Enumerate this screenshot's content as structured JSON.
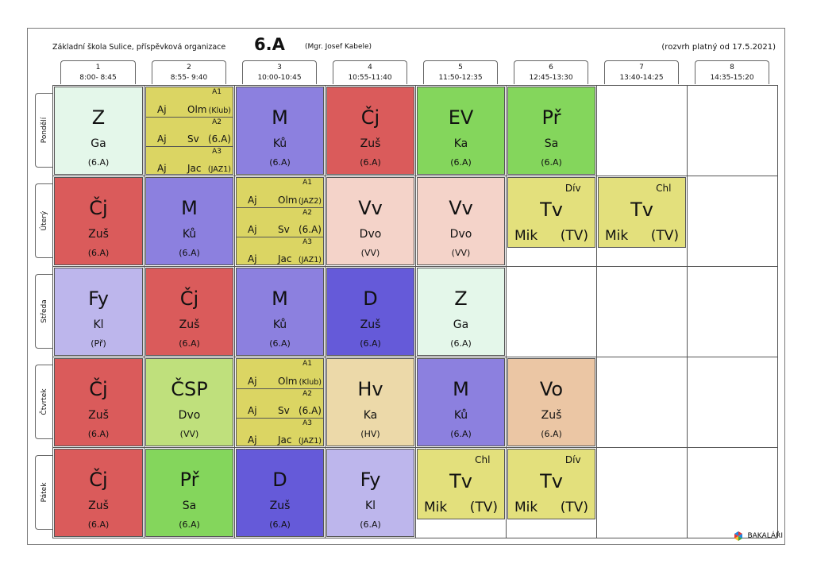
{
  "header": {
    "school": "Základní škola Sulice, příspěvková organizace",
    "class": "6.A",
    "teacher": "(Mgr. Josef Kabele)",
    "validity": "(rozvrh platný od 17.5.2021)"
  },
  "periods": [
    {
      "num": "1",
      "time": "8:00- 8:45"
    },
    {
      "num": "2",
      "time": "8:55- 9:40"
    },
    {
      "num": "3",
      "time": "10:00-10:45"
    },
    {
      "num": "4",
      "time": "10:55-11:40"
    },
    {
      "num": "5",
      "time": "11:50-12:35"
    },
    {
      "num": "6",
      "time": "12:45-13:30"
    },
    {
      "num": "7",
      "time": "13:40-14:25"
    },
    {
      "num": "8",
      "time": "14:35-15:20"
    }
  ],
  "days": [
    "Pondělí",
    "Úterý",
    "Středa",
    "Čtvrtek",
    "Pátek"
  ],
  "lessons": [
    [
      {
        "subject": "Z",
        "teacher": "Ga",
        "room": "(6.A)",
        "color": "#e4f7ea"
      },
      {
        "split": [
          {
            "group": "A1",
            "subject": "Aj",
            "teacher": "Olm",
            "room": "(Klub)"
          },
          {
            "group": "A2",
            "subject": "Aj",
            "teacher": "Sv",
            "room": "(6.A)"
          },
          {
            "group": "A3",
            "subject": "Aj",
            "teacher": "Jac",
            "room": "(JAZ1)"
          }
        ]
      },
      {
        "subject": "M",
        "teacher": "Ků",
        "room": "(6.A)",
        "color": "#8c80df"
      },
      {
        "subject": "Čj",
        "teacher": "Zuš",
        "room": "(6.A)",
        "color": "#da5b5b"
      },
      {
        "subject": "EV",
        "teacher": "Ka",
        "room": "(6.A)",
        "color": "#84d65c"
      },
      {
        "subject": "Př",
        "teacher": "Sa",
        "room": "(6.A)",
        "color": "#84d65c"
      },
      null,
      null
    ],
    [
      {
        "subject": "Čj",
        "teacher": "Zuš",
        "room": "(6.A)",
        "color": "#da5b5b"
      },
      {
        "subject": "M",
        "teacher": "Ků",
        "room": "(6.A)",
        "color": "#8c80df"
      },
      {
        "split": [
          {
            "group": "A1",
            "subject": "Aj",
            "teacher": "Olm",
            "room": "(JAZ2)"
          },
          {
            "group": "A2",
            "subject": "Aj",
            "teacher": "Sv",
            "room": "(6.A)"
          },
          {
            "group": "A3",
            "subject": "Aj",
            "teacher": "Jac",
            "room": "(JAZ1)"
          }
        ]
      },
      {
        "subject": "Vv",
        "teacher": "Dvo",
        "room": "(VV)",
        "color": "#f4d3c9"
      },
      {
        "subject": "Vv",
        "teacher": "Dvo",
        "room": "(VV)",
        "color": "#f4d3c9"
      },
      {
        "tv": true,
        "group": "Dív",
        "subject": "Tv",
        "teacher": "Mik",
        "room": "(TV)",
        "color": "#e3e07c"
      },
      {
        "tv": true,
        "group": "Chl",
        "subject": "Tv",
        "teacher": "Mik",
        "room": "(TV)",
        "color": "#e3e07c"
      },
      null
    ],
    [
      {
        "subject": "Fy",
        "teacher": "Kl",
        "room": "(Př)",
        "color": "#bdb6ec"
      },
      {
        "subject": "Čj",
        "teacher": "Zuš",
        "room": "(6.A)",
        "color": "#da5b5b"
      },
      {
        "subject": "M",
        "teacher": "Ků",
        "room": "(6.A)",
        "color": "#8c80df"
      },
      {
        "subject": "D",
        "teacher": "Zuš",
        "room": "(6.A)",
        "color": "#655ad9"
      },
      {
        "subject": "Z",
        "teacher": "Ga",
        "room": "(6.A)",
        "color": "#e4f7ea"
      },
      null,
      null,
      null
    ],
    [
      {
        "subject": "Čj",
        "teacher": "Zuš",
        "room": "(6.A)",
        "color": "#da5b5b"
      },
      {
        "subject": "ČSP",
        "teacher": "Dvo",
        "room": "(VV)",
        "color": "#bfe07c"
      },
      {
        "split": [
          {
            "group": "A1",
            "subject": "Aj",
            "teacher": "Olm",
            "room": "(Klub)"
          },
          {
            "group": "A2",
            "subject": "Aj",
            "teacher": "Sv",
            "room": "(6.A)"
          },
          {
            "group": "A3",
            "subject": "Aj",
            "teacher": "Jac",
            "room": "(JAZ1)"
          }
        ]
      },
      {
        "subject": "Hv",
        "teacher": "Ka",
        "room": "(HV)",
        "color": "#ecd9a9"
      },
      {
        "subject": "M",
        "teacher": "Ků",
        "room": "(6.A)",
        "color": "#8c80df"
      },
      {
        "subject": "Vo",
        "teacher": "Zuš",
        "room": "(6.A)",
        "color": "#ebc6a4"
      },
      null,
      null
    ],
    [
      {
        "subject": "Čj",
        "teacher": "Zuš",
        "room": "(6.A)",
        "color": "#da5b5b"
      },
      {
        "subject": "Př",
        "teacher": "Sa",
        "room": "(6.A)",
        "color": "#84d65c"
      },
      {
        "subject": "D",
        "teacher": "Zuš",
        "room": "(6.A)",
        "color": "#655ad9"
      },
      {
        "subject": "Fy",
        "teacher": "Kl",
        "room": "(6.A)",
        "color": "#bdb6ec"
      },
      {
        "tv": true,
        "group": "Chl",
        "subject": "Tv",
        "teacher": "Mik",
        "room": "(TV)",
        "color": "#e3e07c"
      },
      {
        "tv": true,
        "group": "Dív",
        "subject": "Tv",
        "teacher": "Mik",
        "room": "(TV)",
        "color": "#e3e07c"
      },
      null,
      null
    ]
  ],
  "logo": {
    "text": "BAKALÁŘI",
    "colors": [
      "#e53935",
      "#1e88e5",
      "#43a047",
      "#fbc02d"
    ]
  }
}
